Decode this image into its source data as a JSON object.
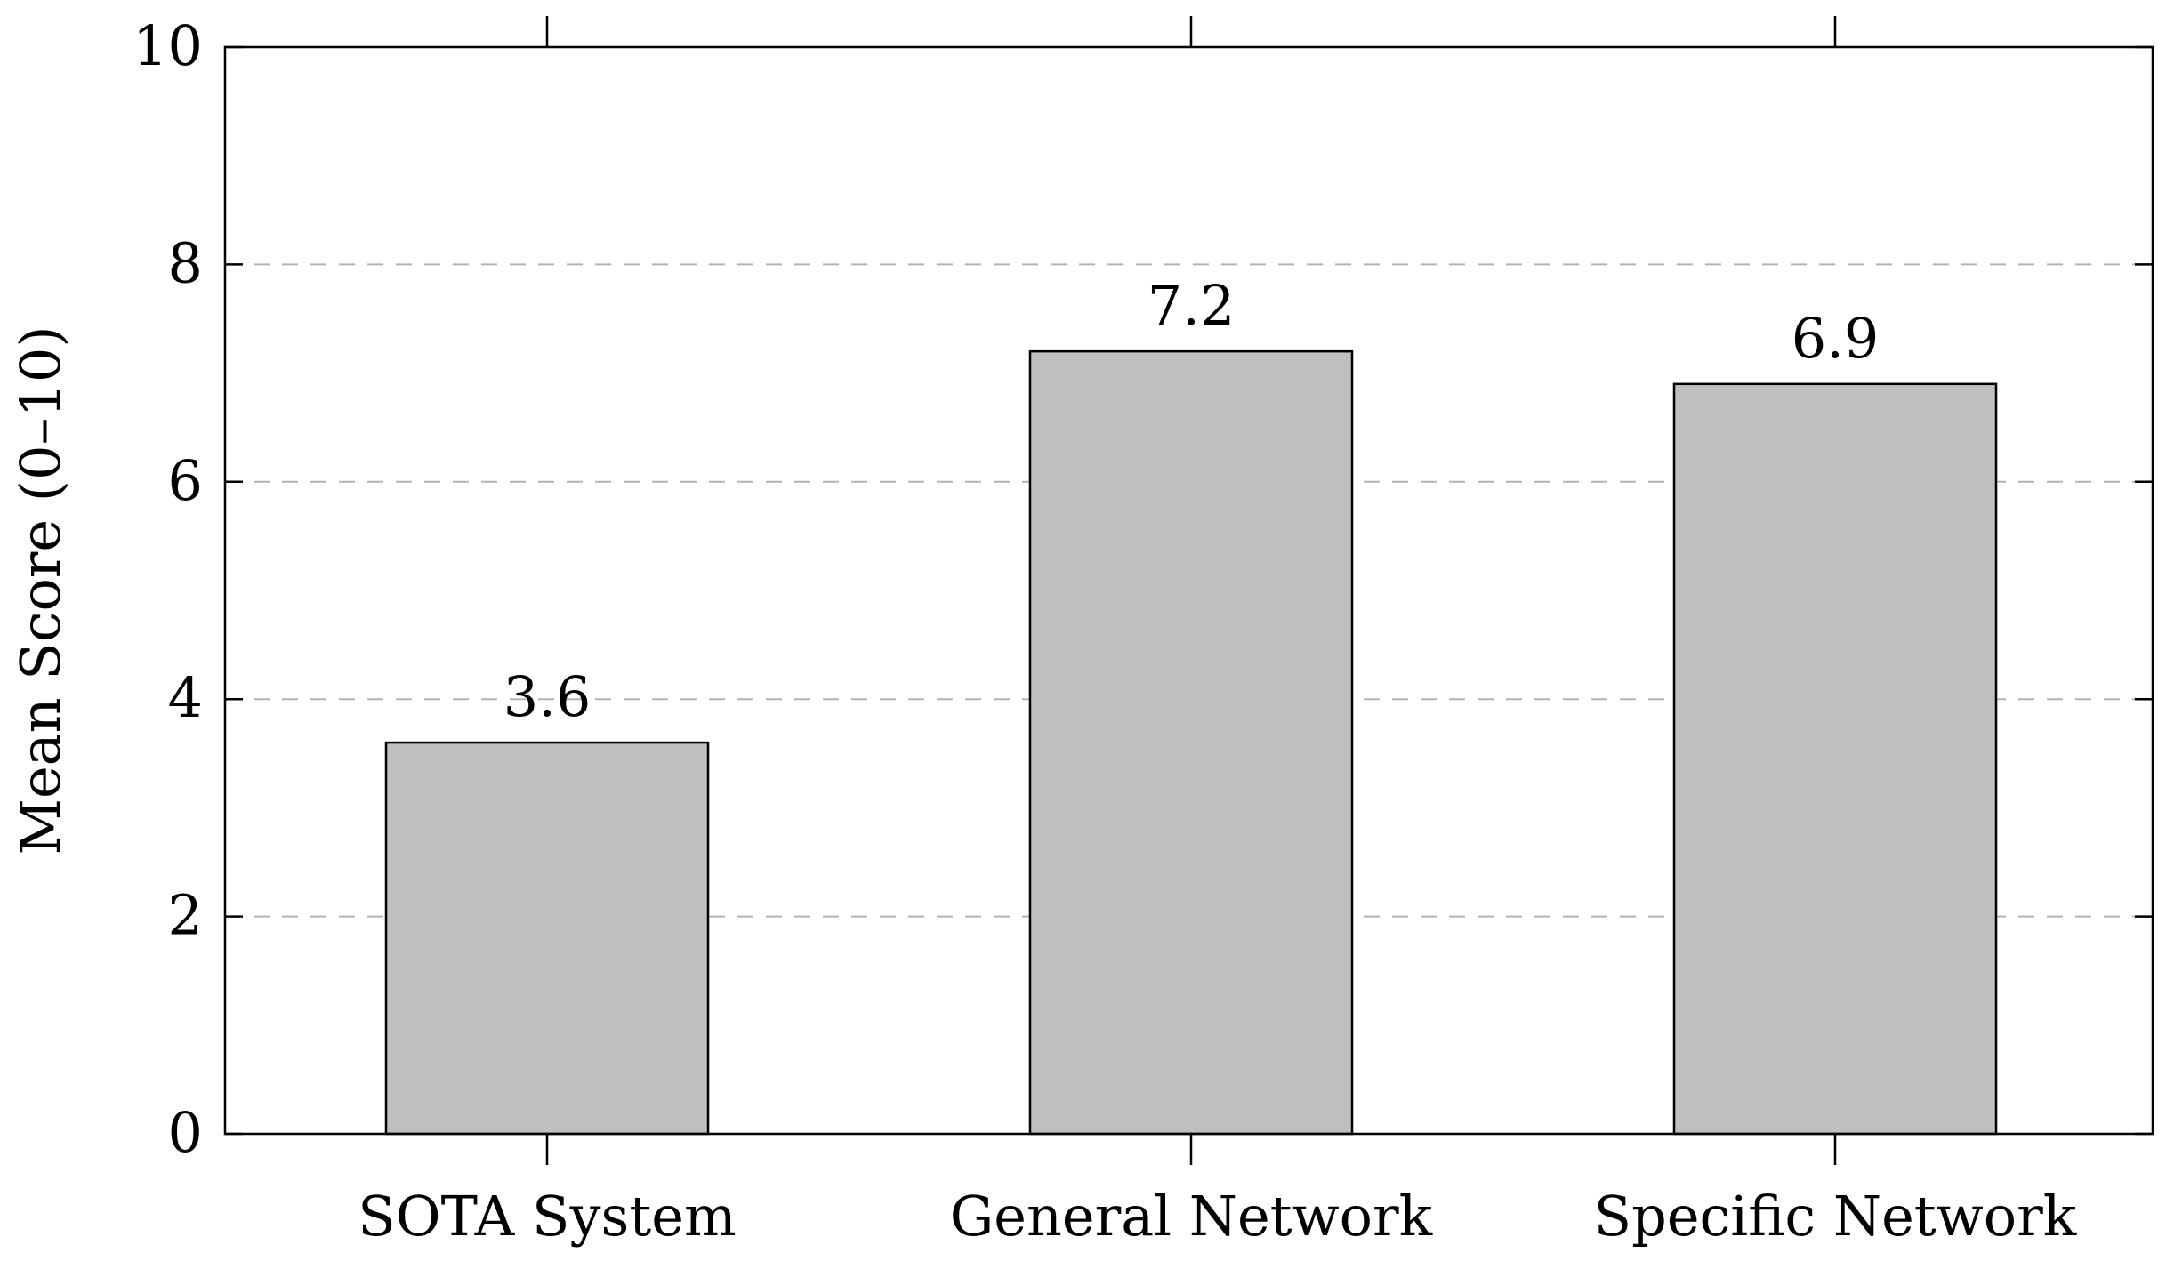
{
  "chart_data": {
    "type": "bar",
    "categories": [
      "SOTA System",
      "General Network",
      "Specific Network"
    ],
    "values": [
      3.6,
      7.2,
      6.9
    ],
    "data_labels": [
      "3.6",
      "7.2",
      "6.9"
    ],
    "title": "",
    "xlabel": "",
    "ylabel": "Mean Score (0–10)",
    "ylim": [
      0,
      10
    ],
    "yticks": [
      0,
      2,
      4,
      6,
      8,
      10
    ],
    "ytick_labels": [
      "0",
      "2",
      "4",
      "6",
      "8",
      "10"
    ],
    "grid": "horizontal dashed",
    "bar_color": "#bfbfbf",
    "edge_color": "#000000",
    "grid_color": "#b3b3b3"
  }
}
